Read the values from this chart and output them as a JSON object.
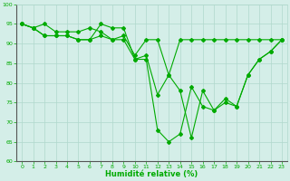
{
  "xlabel": "Humidité relative (%)",
  "xlim": [
    -0.5,
    23.5
  ],
  "ylim": [
    60,
    100
  ],
  "yticks": [
    60,
    65,
    70,
    75,
    80,
    85,
    90,
    95,
    100
  ],
  "xticks": [
    0,
    1,
    2,
    3,
    4,
    5,
    6,
    7,
    8,
    9,
    10,
    11,
    12,
    13,
    14,
    15,
    16,
    17,
    18,
    19,
    20,
    21,
    22,
    23
  ],
  "background_color": "#d4eee8",
  "grid_color": "#b0d8cc",
  "line_color": "#00aa00",
  "series1": [
    95,
    94,
    95,
    93,
    93,
    93,
    94,
    93,
    91,
    92,
    87,
    91,
    91,
    82,
    91,
    91,
    91,
    91,
    91,
    91,
    91,
    91,
    91,
    91
  ],
  "series2": [
    95,
    94,
    92,
    92,
    92,
    91,
    91,
    92,
    91,
    91,
    86,
    87,
    77,
    82,
    78,
    66,
    78,
    73,
    75,
    74,
    82,
    86,
    88,
    91
  ],
  "series3": [
    95,
    94,
    92,
    92,
    92,
    91,
    91,
    95,
    94,
    94,
    86,
    86,
    68,
    65,
    67,
    79,
    74,
    73,
    76,
    74,
    82,
    86,
    88,
    91
  ]
}
